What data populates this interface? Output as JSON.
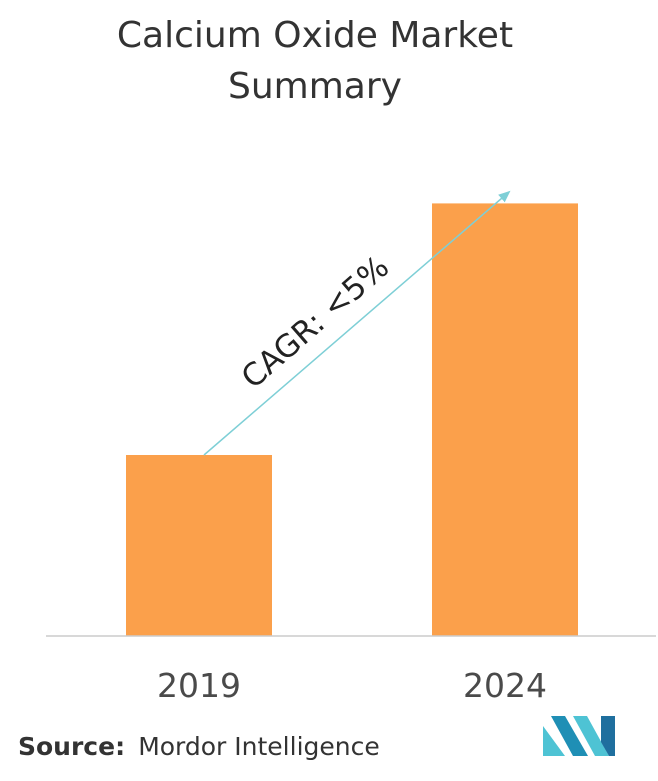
{
  "chart_data": {
    "type": "bar",
    "title_lines": [
      "Calcium Oxide Market",
      "Summary"
    ],
    "categories": [
      "2019",
      "2024"
    ],
    "values": [
      1.0,
      2.39
    ],
    "bar_color": "#fba04b",
    "annotation": {
      "text": "CAGR: <5%",
      "arrow_color": "#7ecfd6"
    },
    "axis_line_color": "#cccccc",
    "grid": false,
    "legend": "none"
  },
  "source": {
    "label": "Source:",
    "name": "Mordor Intelligence"
  },
  "logo": {
    "icon": "mordor-intelligence-logo-icon",
    "colors": [
      "#4ec3d4",
      "#1f6f9e"
    ]
  }
}
